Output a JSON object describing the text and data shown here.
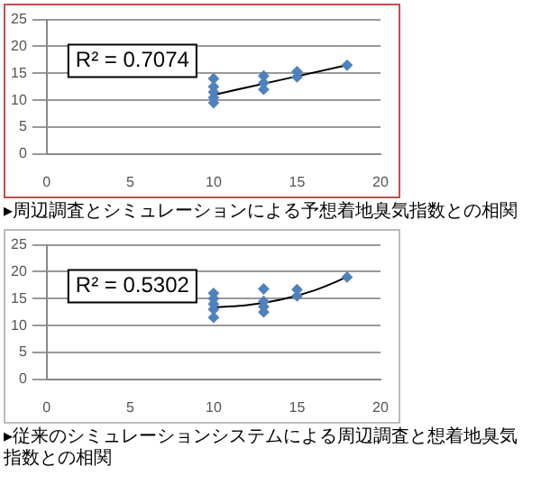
{
  "chart_data": [
    {
      "type": "scatter",
      "marker": "diamond",
      "grid": "y",
      "legend": false,
      "xlim": [
        0,
        20
      ],
      "xticks": [
        0,
        5,
        10,
        15,
        20
      ],
      "ylim": [
        0,
        25
      ],
      "yticks": [
        0,
        5,
        10,
        15,
        20,
        25
      ],
      "annotations": [
        "R² = 0.7074",
        "▸周辺調査とシミュレーションによる予想着地臭気指数との相関"
      ],
      "series": [
        {
          "color": "#4f81bd",
          "x": [
            10,
            10,
            10,
            10,
            10,
            13,
            13,
            13,
            15,
            15,
            18
          ],
          "values": [
            9.5,
            10.5,
            11.5,
            12.5,
            14,
            12,
            13.2,
            14.5,
            14.3,
            15.3,
            16.5
          ]
        },
        {
          "type": "line",
          "marker": "none",
          "color": "#000000",
          "x": [
            10,
            18
          ],
          "values": [
            11,
            16.5
          ]
        }
      ]
    },
    {
      "type": "scatter",
      "marker": "diamond",
      "grid": "y",
      "legend": false,
      "xlim": [
        0,
        20
      ],
      "xticks": [
        0,
        5,
        10,
        15,
        20
      ],
      "ylim": [
        0,
        25
      ],
      "yticks": [
        0,
        5,
        10,
        15,
        20,
        25
      ],
      "annotations": [
        "R² = 0.5302",
        "▸従来のシミュレーションシステムによる周辺調査と想着地臭気指数との相関"
      ],
      "series": [
        {
          "color": "#4f81bd",
          "x": [
            10,
            10,
            10,
            10,
            10,
            13,
            13,
            13,
            13,
            15,
            15,
            18
          ],
          "values": [
            11.5,
            13,
            14,
            15,
            16,
            12.5,
            13.5,
            14.5,
            16.8,
            15.5,
            16.7,
            19
          ]
        },
        {
          "type": "line",
          "marker": "none",
          "color": "#000000",
          "x": [
            10,
            12,
            14,
            16,
            18
          ],
          "values": [
            13.4,
            13.8,
            14.8,
            16.5,
            19
          ]
        }
      ]
    }
  ]
}
